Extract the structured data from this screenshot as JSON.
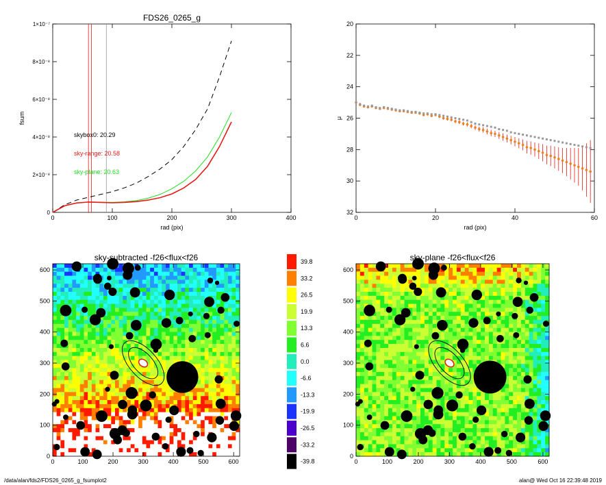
{
  "colors": {
    "black": "#000000",
    "red": "#e41b17",
    "green": "#22dd22",
    "gray": "#999999",
    "orange": "#f07f1f"
  },
  "footer": {
    "left": "/data/alan/fds2/FDS26_0265_g_fsumplot2",
    "right": "alan@  Wed Oct 16 22:39:48 2019"
  },
  "chart_data": [
    {
      "id": "fsum",
      "type": "line",
      "title": "FDS26_0265_g",
      "xlabel": "rad (pix)",
      "ylabel": "fsum",
      "xlim": [
        0,
        400
      ],
      "ylim": [
        0,
        1e-07
      ],
      "xticks": [
        0,
        100,
        200,
        300,
        400
      ],
      "xtick_labels": [
        "0",
        "100",
        "200",
        "300",
        "400"
      ],
      "yticks": [
        0,
        2e-08,
        4e-08,
        6e-08,
        8e-08,
        1e-07
      ],
      "ytick_labels": [
        "0",
        "2×10⁻⁸",
        "4×10⁻⁸",
        "6×10⁻⁸",
        "8×10⁻⁸",
        "1×10⁻⁷"
      ],
      "annotations": [
        {
          "text": "skybox0: 20.29",
          "color": "black"
        },
        {
          "text": "sky-range: 20.58",
          "color": "red"
        },
        {
          "text": "sky-plane: 20.63",
          "color": "green"
        }
      ],
      "vlines": [
        {
          "x": 60,
          "color": "red"
        },
        {
          "x": 65,
          "color": "red"
        },
        {
          "x": 90,
          "color": "gray"
        }
      ],
      "series": [
        {
          "color": "black",
          "style": "dashed",
          "x": [
            0,
            20,
            40,
            60,
            80,
            100,
            120,
            140,
            160,
            180,
            200,
            220,
            240,
            260,
            280,
            300
          ],
          "y": [
            0,
            4e-09,
            6.5e-09,
            8e-09,
            9.5e-09,
            1.1e-08,
            1.3e-08,
            1.55e-08,
            1.9e-08,
            2.3e-08,
            2.8e-08,
            3.5e-08,
            4.4e-08,
            5.5e-08,
            7.2e-08,
            9.1e-08
          ]
        },
        {
          "color": "green",
          "style": "solid",
          "x": [
            0,
            20,
            40,
            60,
            80,
            100,
            120,
            140,
            160,
            180,
            200,
            220,
            240,
            260,
            280,
            300
          ],
          "y": [
            0,
            3.5e-09,
            5e-09,
            5.5e-09,
            5.4e-09,
            5.3e-09,
            5.6e-09,
            6.2e-09,
            7.5e-09,
            9.5e-09,
            1.25e-08,
            1.65e-08,
            2.2e-08,
            2.95e-08,
            4e-08,
            5.3e-08
          ]
        },
        {
          "color": "red",
          "style": "solid",
          "x": [
            0,
            20,
            40,
            60,
            80,
            100,
            120,
            140,
            160,
            180,
            200,
            220,
            240,
            260,
            280,
            300
          ],
          "y": [
            0,
            3.5e-09,
            5e-09,
            5.5e-09,
            5.3e-09,
            5.1e-09,
            5.3e-09,
            5.7e-09,
            6.5e-09,
            7.8e-09,
            9.8e-09,
            1.3e-08,
            1.75e-08,
            2.45e-08,
            3.5e-08,
            4.8e-08
          ]
        }
      ]
    },
    {
      "id": "profile",
      "type": "scatter",
      "title": "",
      "xlabel": "rad (pix)",
      "ylabel": "μ",
      "xlim": [
        0,
        60
      ],
      "ylim": [
        32,
        20
      ],
      "xticks": [
        0,
        20,
        40,
        60
      ],
      "xtick_labels": [
        "0",
        "20",
        "40",
        "60"
      ],
      "yticks": [
        20,
        22,
        24,
        26,
        28,
        30,
        32
      ],
      "ytick_labels": [
        "20",
        "22",
        "24",
        "26",
        "28",
        "30",
        "32"
      ],
      "series": [
        {
          "color": "gray",
          "marker": "square",
          "x": [
            0,
            1,
            2,
            3,
            4,
            5,
            6,
            7,
            8,
            9,
            10,
            11,
            12,
            13,
            14,
            15,
            16,
            17,
            18,
            19,
            20,
            21,
            22,
            23,
            24,
            25,
            26,
            27,
            28,
            29,
            30,
            31,
            32,
            33,
            34,
            35,
            36,
            37,
            38,
            39,
            40,
            41,
            42,
            43,
            44,
            45,
            46,
            47,
            48,
            49,
            50,
            51,
            52,
            53,
            54,
            55,
            56,
            57,
            58,
            59
          ],
          "y": [
            25.0,
            25.1,
            25.2,
            25.25,
            25.2,
            25.3,
            25.35,
            25.3,
            25.35,
            25.4,
            25.45,
            25.5,
            25.5,
            25.55,
            25.6,
            25.6,
            25.65,
            25.7,
            25.7,
            25.75,
            25.75,
            25.8,
            25.85,
            25.9,
            25.95,
            26.0,
            26.05,
            26.1,
            26.15,
            26.25,
            26.35,
            26.4,
            26.45,
            26.5,
            26.55,
            26.6,
            26.7,
            26.75,
            26.8,
            26.9,
            26.95,
            27.0,
            27.05,
            27.1,
            27.15,
            27.2,
            27.25,
            27.3,
            27.35,
            27.4,
            27.45,
            27.5,
            27.55,
            27.6,
            27.65,
            27.7,
            27.75,
            27.8,
            27.85,
            27.9
          ]
        },
        {
          "color": "orange",
          "marker": "circle",
          "errorbars": true,
          "x": [
            0,
            1,
            2,
            3,
            4,
            5,
            6,
            7,
            8,
            9,
            10,
            11,
            12,
            13,
            14,
            15,
            16,
            17,
            18,
            19,
            20,
            21,
            22,
            23,
            24,
            25,
            26,
            27,
            28,
            29,
            30,
            31,
            32,
            33,
            34,
            35,
            36,
            37,
            38,
            39,
            40,
            41,
            42,
            43,
            44,
            45,
            46,
            47,
            48,
            49,
            50,
            51,
            52,
            53,
            54,
            55,
            56,
            57,
            58,
            59
          ],
          "y": [
            25.0,
            25.15,
            25.25,
            25.3,
            25.25,
            25.35,
            25.4,
            25.35,
            25.4,
            25.45,
            25.5,
            25.55,
            25.55,
            25.6,
            25.65,
            25.65,
            25.7,
            25.8,
            25.75,
            25.85,
            25.8,
            25.9,
            26.0,
            26.05,
            26.1,
            26.2,
            26.25,
            26.35,
            26.4,
            26.5,
            26.6,
            26.7,
            26.75,
            26.85,
            26.95,
            27.0,
            27.1,
            27.2,
            27.3,
            27.4,
            27.5,
            27.6,
            27.7,
            27.85,
            27.9,
            28.0,
            28.1,
            28.2,
            28.35,
            28.4,
            28.5,
            28.6,
            28.7,
            28.8,
            28.9,
            29.0,
            29.1,
            29.2,
            29.3,
            29.4
          ],
          "err": [
            0.05,
            0.05,
            0.05,
            0.05,
            0.05,
            0.05,
            0.05,
            0.05,
            0.05,
            0.05,
            0.05,
            0.06,
            0.06,
            0.06,
            0.06,
            0.07,
            0.07,
            0.07,
            0.08,
            0.08,
            0.08,
            0.09,
            0.1,
            0.1,
            0.1,
            0.11,
            0.12,
            0.12,
            0.13,
            0.14,
            0.15,
            0.16,
            0.17,
            0.18,
            0.2,
            0.2,
            0.22,
            0.24,
            0.25,
            0.27,
            0.3,
            0.32,
            0.35,
            0.4,
            0.42,
            0.45,
            0.5,
            0.55,
            0.6,
            0.65,
            0.7,
            0.75,
            0.8,
            0.9,
            1.0,
            1.1,
            1.2,
            1.4,
            1.7,
            2.0
          ]
        }
      ]
    },
    {
      "id": "img-subtracted",
      "type": "heatmap",
      "title": "sky-subtracted -f26<flux<f26",
      "xlim": [
        0,
        620
      ],
      "ylim": [
        0,
        620
      ],
      "xticks": [
        0,
        100,
        200,
        300,
        400,
        500,
        600
      ],
      "xtick_labels": [
        "0",
        "100",
        "200",
        "300",
        "400",
        "500",
        "600"
      ],
      "yticks": [
        0,
        100,
        200,
        300,
        400,
        500,
        600
      ],
      "ytick_labels": [
        "0",
        "100",
        "200",
        "300",
        "400",
        "500",
        "600"
      ]
    },
    {
      "id": "img-plane",
      "type": "heatmap",
      "title": "sky-plane -f26<flux<f26",
      "xlim": [
        0,
        620
      ],
      "ylim": [
        0,
        620
      ],
      "xticks": [
        0,
        100,
        200,
        300,
        400,
        500,
        600
      ],
      "xtick_labels": [
        "0",
        "100",
        "200",
        "300",
        "400",
        "500",
        "600"
      ],
      "yticks": [
        0,
        100,
        200,
        300,
        400,
        500,
        600
      ],
      "ytick_labels": [
        "0",
        "100",
        "200",
        "300",
        "400",
        "500",
        "600"
      ]
    },
    {
      "id": "colorbar",
      "type": "table",
      "levels": [
        {
          "label": "39.8",
          "color": "#ff1a00"
        },
        {
          "label": "33.2",
          "color": "#ff8000"
        },
        {
          "label": "26.5",
          "color": "#ffff00"
        },
        {
          "label": "19.9",
          "color": "#ccff33"
        },
        {
          "label": "13.3",
          "color": "#80ff33"
        },
        {
          "label": "6.6",
          "color": "#22ee22"
        },
        {
          "label": "0.0",
          "color": "#22eebb"
        },
        {
          "label": "-6.6",
          "color": "#22ffff"
        },
        {
          "label": "-13.3",
          "color": "#2299ff"
        },
        {
          "label": "-19.9",
          "color": "#1a33ff"
        },
        {
          "label": "-26.5",
          "color": "#4d00cc"
        },
        {
          "label": "-33.2",
          "color": "#4d0066"
        },
        {
          "label": "-39.8",
          "color": "#000000"
        }
      ]
    }
  ]
}
